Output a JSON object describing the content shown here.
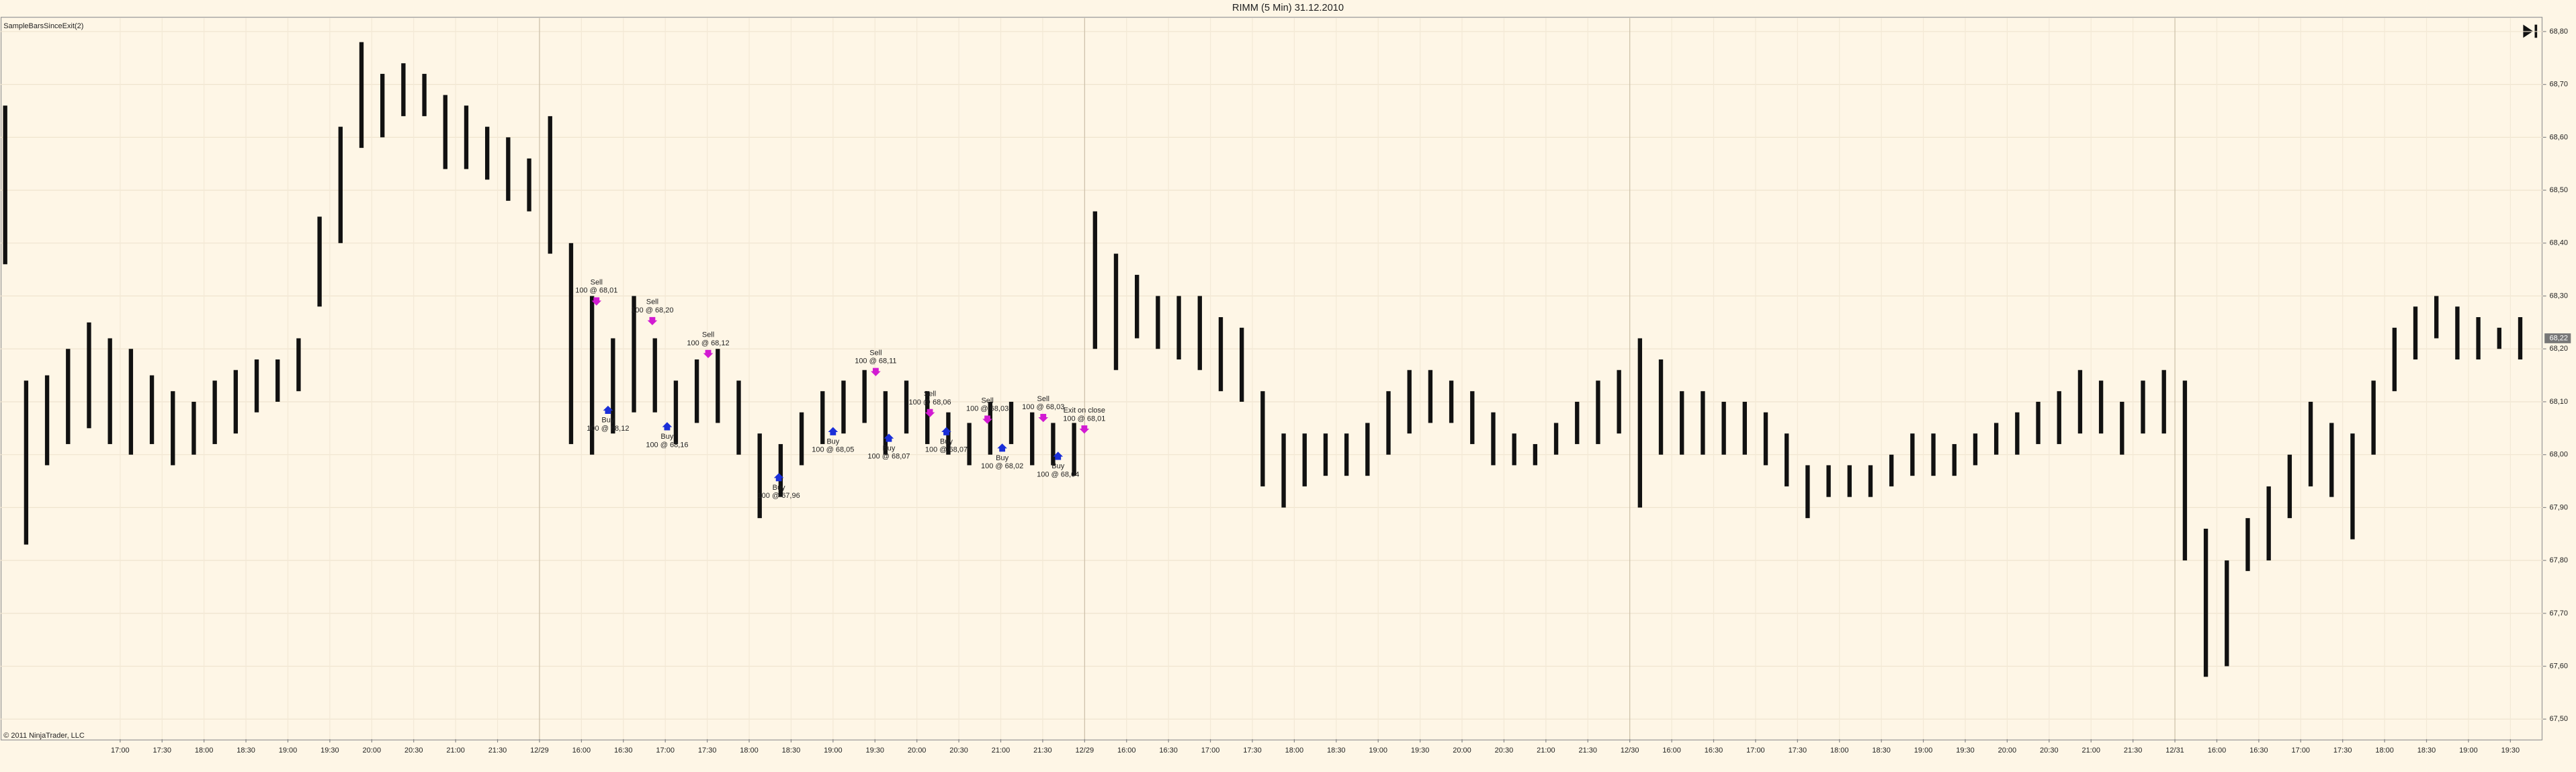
{
  "chart_data": {
    "type": "range-bar",
    "title": "RIMM (5 Min)  31.12.2010",
    "indicator": "SampleBarsSinceExit(2)",
    "copyright": "© 2011 NinjaTrader, LLC",
    "ylim": [
      67.5,
      68.8
    ],
    "yticks": [
      {
        "value": 67.5,
        "label": "67,50"
      },
      {
        "value": 67.6,
        "label": "67,60"
      },
      {
        "value": 67.7,
        "label": "67,70"
      },
      {
        "value": 67.8,
        "label": "67,80"
      },
      {
        "value": 67.9,
        "label": "67,90"
      },
      {
        "value": 68.0,
        "label": "68,00"
      },
      {
        "value": 68.1,
        "label": "68,10"
      },
      {
        "value": 68.2,
        "label": "68,20"
      },
      {
        "value": 68.3,
        "label": "68,30"
      },
      {
        "value": 68.4,
        "label": "68,40"
      },
      {
        "value": 68.5,
        "label": "68,50"
      },
      {
        "value": 68.6,
        "label": "68,60"
      },
      {
        "value": 68.7,
        "label": "68,70"
      },
      {
        "value": 68.8,
        "label": "68,80"
      }
    ],
    "last_price": {
      "value": 68.22,
      "label": "68,22"
    },
    "grid": true,
    "color": "#111111",
    "categories": [
      "17:00",
      "17:30",
      "18:00",
      "18:30",
      "19:00",
      "19:30",
      "20:00",
      "20:30",
      "21:00",
      "21:30",
      "12/29",
      "16:00",
      "16:30",
      "17:00",
      "17:30",
      "18:00",
      "18:30",
      "19:00",
      "19:30",
      "20:00",
      "20:30",
      "21:00",
      "21:30",
      "12/29",
      "16:00",
      "16:30",
      "17:00",
      "17:30",
      "18:00",
      "18:30",
      "19:00",
      "19:30",
      "20:00",
      "20:30",
      "21:00",
      "21:30",
      "12/30",
      "16:00",
      "16:30",
      "17:00",
      "17:30",
      "18:00",
      "18:30",
      "19:00",
      "19:30",
      "20:00",
      "20:30",
      "21:00",
      "21:30",
      "12/31",
      "16:00",
      "16:30",
      "17:00",
      "17:30",
      "18:00",
      "18:30",
      "19:00",
      "19:30"
    ],
    "bars": {
      "high": [
        68.66,
        68.14,
        68.15,
        68.2,
        68.25,
        68.22,
        68.2,
        68.15,
        68.12,
        68.1,
        68.14,
        68.16,
        68.18,
        68.18,
        68.22,
        68.45,
        68.62,
        68.78,
        68.72,
        68.74,
        68.72,
        68.68,
        68.66,
        68.62,
        68.6,
        68.56,
        68.64,
        68.4,
        68.3,
        68.22,
        68.3,
        68.22,
        68.14,
        68.18,
        68.2,
        68.14,
        68.04,
        68.02,
        68.08,
        68.12,
        68.14,
        68.16,
        68.12,
        68.14,
        68.12,
        68.08,
        68.06,
        68.1,
        68.1,
        68.08,
        68.06,
        68.06,
        68.46,
        68.38,
        68.34,
        68.3,
        68.3,
        68.3,
        68.26,
        68.24,
        68.12,
        68.04,
        68.04,
        68.04,
        68.04,
        68.06,
        68.12,
        68.16,
        68.16,
        68.14,
        68.12,
        68.08,
        68.04,
        68.02,
        68.06,
        68.1,
        68.14,
        68.16,
        68.22,
        68.18,
        68.12,
        68.12,
        68.1,
        68.1,
        68.08,
        68.04,
        67.98,
        67.98,
        67.98,
        67.98,
        68.0,
        68.04,
        68.04,
        68.02,
        68.04,
        68.06,
        68.08,
        68.1,
        68.12,
        68.16,
        68.14,
        68.1,
        68.14,
        68.16,
        68.14,
        67.86,
        67.8,
        67.88,
        67.94,
        68.0,
        68.1,
        68.06,
        68.04,
        68.14,
        68.24,
        68.28,
        68.3,
        68.28,
        68.26,
        68.24,
        68.26
      ],
      "low": [
        68.36,
        67.83,
        67.98,
        68.02,
        68.05,
        68.02,
        68.0,
        68.02,
        67.98,
        68.0,
        68.02,
        68.04,
        68.08,
        68.1,
        68.12,
        68.28,
        68.4,
        68.58,
        68.6,
        68.64,
        68.64,
        68.54,
        68.54,
        68.52,
        68.48,
        68.46,
        68.38,
        68.02,
        68.0,
        68.04,
        68.08,
        68.08,
        68.02,
        68.06,
        68.06,
        68.0,
        67.88,
        67.92,
        67.98,
        68.02,
        68.04,
        68.06,
        68.0,
        68.04,
        68.02,
        68.0,
        67.98,
        68.0,
        68.02,
        67.98,
        67.98,
        67.96,
        68.2,
        68.16,
        68.22,
        68.2,
        68.18,
        68.16,
        68.12,
        68.1,
        67.94,
        67.9,
        67.94,
        67.96,
        67.96,
        67.96,
        68.0,
        68.04,
        68.06,
        68.06,
        68.02,
        67.98,
        67.98,
        67.98,
        68.0,
        68.02,
        68.02,
        68.04,
        67.9,
        68.0,
        68.0,
        68.0,
        68.0,
        68.0,
        67.98,
        67.94,
        67.88,
        67.92,
        67.92,
        67.92,
        67.94,
        67.96,
        67.96,
        67.96,
        67.98,
        68.0,
        68.0,
        68.02,
        68.02,
        68.04,
        68.04,
        68.0,
        68.04,
        68.04,
        67.8,
        67.58,
        67.6,
        67.78,
        67.8,
        67.88,
        67.94,
        67.92,
        67.84,
        68.0,
        68.12,
        68.18,
        68.22,
        68.18,
        68.18,
        68.2,
        68.18
      ]
    },
    "trades": [
      {
        "label": "Sell",
        "detail": "100 @ 68,01",
        "side": "sell"
      },
      {
        "label": "Sell",
        "detail": "100 @ 68,20",
        "side": "sell"
      },
      {
        "label": "Sell",
        "detail": "100 @ 68,12",
        "side": "sell"
      },
      {
        "label": "Sell",
        "detail": "100 @ 68,11",
        "side": "sell"
      },
      {
        "label": "Sell",
        "detail": "100 @ 68,06",
        "side": "sell"
      },
      {
        "label": "Sell",
        "detail": "100 @ 68,03",
        "side": "sell"
      },
      {
        "label": "Sell",
        "detail": "100 @ 68,03",
        "side": "sell"
      },
      {
        "label": "Exit on close",
        "detail": "100 @ 68,01",
        "side": "sell"
      },
      {
        "label": "Buy",
        "detail": "100 @ 68,12",
        "side": "buy"
      },
      {
        "label": "Buy",
        "detail": "100 @ 68,16",
        "side": "buy"
      },
      {
        "label": "Buy",
        "detail": "100 @ 67,96",
        "side": "buy"
      },
      {
        "label": "Buy",
        "detail": "100 @ 68,05",
        "side": "buy"
      },
      {
        "label": "Buy",
        "detail": "100 @ 68,07",
        "side": "buy"
      },
      {
        "label": "Buy",
        "detail": "100 @ 68,07",
        "side": "buy"
      },
      {
        "label": "Buy",
        "detail": "100 @ 68,02",
        "side": "buy"
      },
      {
        "label": "Buy",
        "detail": "100 @ 68,04",
        "side": "buy"
      }
    ]
  }
}
